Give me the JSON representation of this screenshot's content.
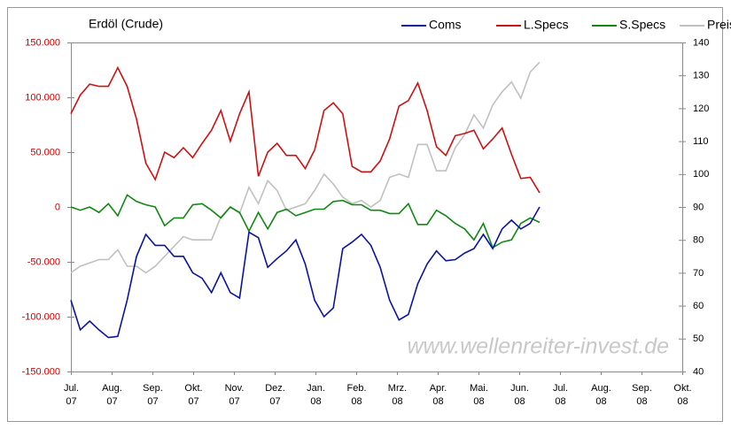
{
  "chart_data": {
    "type": "line",
    "title": "Erdöl (Crude)",
    "watermark": "www.wellenreiter-invest.de",
    "legend": "top-right",
    "x": [
      0,
      0.23,
      0.46,
      0.69,
      0.92,
      1.15,
      1.38,
      1.61,
      1.84,
      2.07,
      2.3,
      2.53,
      2.76,
      2.99,
      3.22,
      3.45,
      3.68,
      3.91,
      4.14,
      4.37,
      4.6,
      4.83,
      5.06,
      5.29,
      5.52,
      5.75,
      5.98,
      6.21,
      6.44,
      6.67,
      6.9,
      7.13,
      7.36,
      7.59,
      7.82,
      8.05,
      8.28,
      8.51,
      8.74,
      8.97,
      9.2,
      9.43,
      9.66,
      9.89,
      10.12,
      10.35,
      10.58,
      10.81,
      11.04,
      11.27,
      11.5
    ],
    "xlim": [
      0,
      15
    ],
    "xticks": [
      {
        "value": 0,
        "label": "Jul.\n07"
      },
      {
        "value": 1,
        "label": "Aug.\n07"
      },
      {
        "value": 2,
        "label": "Sep.\n07"
      },
      {
        "value": 3,
        "label": "Okt.\n07"
      },
      {
        "value": 4,
        "label": "Nov.\n07"
      },
      {
        "value": 5,
        "label": "Dez.\n07"
      },
      {
        "value": 6,
        "label": "Jan.\n08"
      },
      {
        "value": 7,
        "label": "Feb.\n08"
      },
      {
        "value": 8,
        "label": "Mrz.\n08"
      },
      {
        "value": 9,
        "label": "Apr.\n08"
      },
      {
        "value": 10,
        "label": "Mai.\n08"
      },
      {
        "value": 11,
        "label": "Jun.\n08"
      },
      {
        "value": 12,
        "label": "Jul.\n08"
      },
      {
        "value": 13,
        "label": "Aug.\n08"
      },
      {
        "value": 14,
        "label": "Sep.\n08"
      },
      {
        "value": 15,
        "label": "Okt.\n08"
      }
    ],
    "ylim": [
      -150000,
      150000
    ],
    "yticks": [
      {
        "value": -150000,
        "label": "-150.000"
      },
      {
        "value": -100000,
        "label": "-100.000"
      },
      {
        "value": -50000,
        "label": "-50.000"
      },
      0,
      {
        "value": 50000,
        "label": "50.000"
      },
      {
        "value": 100000,
        "label": "100.000"
      },
      {
        "value": 150000,
        "label": "150.000"
      }
    ],
    "y2lim": [
      40,
      140
    ],
    "y2ticks": [
      40,
      50,
      60,
      70,
      80,
      90,
      100,
      110,
      120,
      130,
      140
    ],
    "series": [
      {
        "name": "Coms",
        "color": "#0a14a0",
        "values": [
          -85000,
          -112000,
          -104000,
          -112000,
          -119000,
          -118000,
          -85000,
          -45000,
          -25000,
          -35000,
          -35000,
          -45000,
          -45000,
          -60000,
          -65000,
          -78000,
          -60000,
          -78000,
          -83000,
          -23000,
          -28000,
          -55000,
          -47000,
          -40000,
          -30000,
          -52000,
          -85000,
          -100000,
          -92000,
          -38000,
          -32000,
          -25000,
          -35000,
          -55000,
          -85000,
          -103000,
          -98000,
          -70000,
          -52000,
          -40000,
          -49000,
          -48000,
          -42000,
          -38000,
          -25000,
          -38000,
          -20000,
          -12000,
          -20000,
          -15000,
          0
        ]
      },
      {
        "name": "L.Specs",
        "color": "#cc1111",
        "values": [
          85000,
          102000,
          112000,
          110000,
          110000,
          127000,
          110000,
          80000,
          40000,
          25000,
          50000,
          45000,
          54000,
          45000,
          58000,
          70000,
          88000,
          60000,
          85000,
          105000,
          28000,
          50000,
          58000,
          47000,
          47000,
          35000,
          52000,
          88000,
          95000,
          85000,
          37000,
          32000,
          32000,
          42000,
          62000,
          92000,
          97000,
          113000,
          88000,
          55000,
          47000,
          65000,
          67000,
          70000,
          53000,
          62000,
          72000,
          48000,
          26000,
          27000,
          13000
        ]
      },
      {
        "name": "S.Specs",
        "color": "#118811",
        "values": [
          0,
          -3000,
          0,
          -5000,
          3000,
          -8000,
          11000,
          5000,
          2000,
          0,
          -17000,
          -10000,
          -10000,
          2000,
          3000,
          -3000,
          -10000,
          0,
          -5000,
          -22000,
          -5000,
          -20000,
          -5000,
          -2000,
          -8000,
          -5000,
          -2000,
          -2000,
          5000,
          6000,
          2000,
          2000,
          -3000,
          -3000,
          -6000,
          -6000,
          3000,
          -16000,
          -16000,
          -3000,
          -8000,
          -15000,
          -20000,
          -30000,
          -15000,
          -37000,
          -32000,
          -30000,
          -15000,
          -10000,
          -14000
        ]
      },
      {
        "name": "Preis",
        "color": "#c0c0c0",
        "axis": "y2",
        "values": [
          70,
          72,
          73,
          74,
          74,
          77,
          72,
          72,
          70,
          72,
          75,
          78,
          81,
          80,
          80,
          80,
          87,
          90,
          88,
          96,
          91,
          98,
          95,
          89,
          90,
          91,
          95,
          100,
          97,
          93,
          91,
          92,
          90,
          92,
          99,
          100,
          99,
          109,
          109,
          101,
          101,
          108,
          112,
          118,
          114,
          121,
          125,
          128,
          123,
          131,
          134
        ]
      }
    ]
  }
}
